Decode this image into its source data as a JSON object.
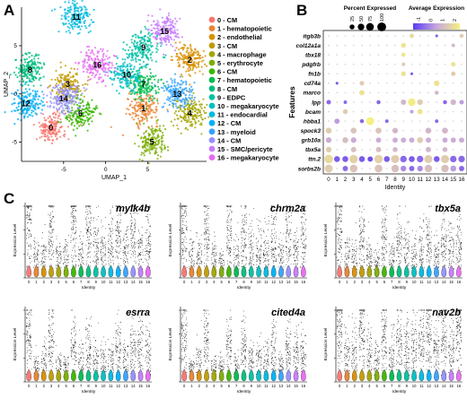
{
  "panels": {
    "a": "A",
    "b": "B",
    "c": "C"
  },
  "clusters": [
    {
      "id": 0,
      "label": "0 - CM",
      "color": "#F8766D"
    },
    {
      "id": 1,
      "label": "1 - hematopoietic",
      "color": "#EA8331"
    },
    {
      "id": 2,
      "label": "2 - endothelial",
      "color": "#D89000"
    },
    {
      "id": 3,
      "label": "3 - CM",
      "color": "#C09B00"
    },
    {
      "id": 4,
      "label": "4 - macrophage",
      "color": "#A3A500"
    },
    {
      "id": 5,
      "label": "5 - erythrocyte",
      "color": "#7CAE00"
    },
    {
      "id": 6,
      "label": "6 - CM",
      "color": "#39B600"
    },
    {
      "id": 7,
      "label": "7 - hematopoietic",
      "color": "#00BB4E"
    },
    {
      "id": 8,
      "label": "8 - CM",
      "color": "#00BF7D"
    },
    {
      "id": 9,
      "label": "9 - EDPC",
      "color": "#00C1A3"
    },
    {
      "id": 10,
      "label": "10 - megakaryocyte",
      "color": "#00BFC4"
    },
    {
      "id": 11,
      "label": "11 - endocardial",
      "color": "#00BAE0"
    },
    {
      "id": 12,
      "label": "12 - CM",
      "color": "#00B0F6"
    },
    {
      "id": 13,
      "label": "13 - myeloid",
      "color": "#35A2FF"
    },
    {
      "id": 14,
      "label": "14 - CM",
      "color": "#9590FF"
    },
    {
      "id": 15,
      "label": "15 - SMC/pericyte",
      "color": "#C77CFF"
    },
    {
      "id": 16,
      "label": "16 - megakaryocyte",
      "color": "#E76BF3"
    }
  ],
  "chart_data": [
    {
      "type": "scatter",
      "panel": "A",
      "xlabel": "UMAP_1",
      "ylabel": "UMAP_2",
      "xticks": [
        -5,
        0,
        5
      ],
      "yticks": [
        -5,
        0,
        5
      ],
      "xlim": [
        -10,
        12
      ],
      "ylim": [
        -7,
        9
      ],
      "cluster_centers": [
        {
          "cluster": 0,
          "x": -6.5,
          "y": -3.5
        },
        {
          "cluster": 1,
          "x": 4.5,
          "y": -1.5
        },
        {
          "cluster": 2,
          "x": 10.0,
          "y": 3.5
        },
        {
          "cluster": 3,
          "x": -4.5,
          "y": 1.0
        },
        {
          "cluster": 4,
          "x": 10.0,
          "y": -2.0
        },
        {
          "cluster": 5,
          "x": 5.5,
          "y": -5.0
        },
        {
          "cluster": 6,
          "x": -3.0,
          "y": -2.0
        },
        {
          "cluster": 7,
          "x": 4.5,
          "y": 1.0
        },
        {
          "cluster": 8,
          "x": -9.0,
          "y": 2.5
        },
        {
          "cluster": 9,
          "x": 4.5,
          "y": 4.8
        },
        {
          "cluster": 10,
          "x": 2.5,
          "y": 2.0
        },
        {
          "cluster": 11,
          "x": -3.5,
          "y": 8.0
        },
        {
          "cluster": 12,
          "x": -9.5,
          "y": -1.0
        },
        {
          "cluster": 13,
          "x": 8.5,
          "y": 0.0
        },
        {
          "cluster": 14,
          "x": -5.0,
          "y": -0.5
        },
        {
          "cluster": 15,
          "x": 7.0,
          "y": 6.5
        },
        {
          "cluster": 16,
          "x": -1.0,
          "y": 3.0
        }
      ]
    },
    {
      "type": "dot",
      "panel": "B",
      "xlabel": "Identity",
      "ylabel": "Features",
      "x": [
        "0",
        "1",
        "2",
        "3",
        "4",
        "5",
        "6",
        "7",
        "8",
        "9",
        "10",
        "11",
        "12",
        "13",
        "14",
        "15",
        "16"
      ],
      "features": [
        "itgb3b",
        "col12a1a",
        "tbx18",
        "pdgfrb",
        "fn1b",
        "cd74a",
        "marco",
        "lpp",
        "bcam",
        "hbba1",
        "spock3",
        "grb10a",
        "tbx5a",
        "ttn.2",
        "sorbs2b"
      ],
      "pct_legend": {
        "title": "Percent Expressed",
        "values": [
          25,
          50,
          75,
          100
        ]
      },
      "avg_legend": {
        "title": "Average Expression",
        "ticks": [
          "-1",
          "0",
          "1",
          "2"
        ],
        "colors": [
          "#5a3cf0",
          "#c8a6e0",
          "#f5f080"
        ]
      },
      "cells": [
        {
          "f": "itgb3b",
          "c": [
            {
              "i": 10,
              "p": 20,
              "e": 1.8
            },
            {
              "i": 16,
              "p": 15,
              "e": 1.5
            },
            {
              "i": 13,
              "p": 5,
              "e": -0.5
            }
          ]
        },
        {
          "f": "col12a1a",
          "c": [
            {
              "i": 9,
              "p": 25,
              "e": 2.0
            },
            {
              "i": 15,
              "p": 10,
              "e": 1.0
            }
          ]
        },
        {
          "f": "tbx18",
          "c": [
            {
              "i": 9,
              "p": 15,
              "e": 2.0
            }
          ]
        },
        {
          "f": "pdgfrb",
          "c": [
            {
              "i": 9,
              "p": 10,
              "e": 1.5
            },
            {
              "i": 15,
              "p": 20,
              "e": 2.0
            }
          ]
        },
        {
          "f": "fn1b",
          "c": [
            {
              "i": 9,
              "p": 25,
              "e": 2.0
            },
            {
              "i": 10,
              "p": 5,
              "e": -0.5
            },
            {
              "i": 15,
              "p": 20,
              "e": 1.5
            }
          ]
        },
        {
          "f": "cd74a",
          "c": [
            {
              "i": 4,
              "p": 20,
              "e": 1.5
            },
            {
              "i": 13,
              "p": 35,
              "e": 2.0
            },
            {
              "i": 1,
              "p": 5,
              "e": -0.5
            }
          ]
        },
        {
          "f": "marco",
          "c": [
            {
              "i": 4,
              "p": 30,
              "e": 2.0
            },
            {
              "i": 13,
              "p": 15,
              "e": 1.0
            }
          ]
        },
        {
          "f": "lpp",
          "c": [
            {
              "i": 10,
              "p": 70,
              "e": 2.2
            },
            {
              "i": 11,
              "p": 35,
              "e": 1.5
            },
            {
              "i": 9,
              "p": 30,
              "e": 1.0
            },
            {
              "i": 15,
              "p": 35,
              "e": 1.0
            },
            {
              "i": 16,
              "p": 20,
              "e": 0.5
            },
            {
              "i": 0,
              "p": 20,
              "e": -0.3
            },
            {
              "i": 2,
              "p": 10,
              "e": -0.3
            },
            {
              "i": 6,
              "p": 15,
              "e": -0.3
            },
            {
              "i": 14,
              "p": 15,
              "e": -0.3
            }
          ]
        },
        {
          "f": "bcam",
          "c": [
            {
              "i": 2,
              "p": 25,
              "e": 1.5
            },
            {
              "i": 11,
              "p": 30,
              "e": 2.0
            },
            {
              "i": 10,
              "p": 10,
              "e": 0.5
            }
          ]
        },
        {
          "f": "hbba1",
          "c": [
            {
              "i": 5,
              "p": 80,
              "e": 2.3
            },
            {
              "i": 1,
              "p": 30,
              "e": 0.5
            },
            {
              "i": 4,
              "p": 15,
              "e": -0.3
            },
            {
              "i": 7,
              "p": 10,
              "e": -0.3
            },
            {
              "i": 13,
              "p": 10,
              "e": -0.3
            }
          ]
        },
        {
          "f": "spock3",
          "c": [
            {
              "i": 0,
              "p": 40,
              "e": 1.5
            },
            {
              "i": 3,
              "p": 40,
              "e": 1.3
            },
            {
              "i": 6,
              "p": 40,
              "e": 1.3
            },
            {
              "i": 8,
              "p": 35,
              "e": 1.0
            },
            {
              "i": 12,
              "p": 40,
              "e": 1.0
            },
            {
              "i": 14,
              "p": 40,
              "e": 1.0
            }
          ]
        },
        {
          "f": "grb10a",
          "c": [
            {
              "i": 0,
              "p": 35,
              "e": 0.8
            },
            {
              "i": 2,
              "p": 40,
              "e": 1.2
            },
            {
              "i": 3,
              "p": 35,
              "e": 0.8
            },
            {
              "i": 6,
              "p": 30,
              "e": 0.8
            },
            {
              "i": 8,
              "p": 30,
              "e": 0.8
            },
            {
              "i": 9,
              "p": 30,
              "e": 0.8
            },
            {
              "i": 10,
              "p": 30,
              "e": 0.8
            },
            {
              "i": 11,
              "p": 40,
              "e": 1.5
            },
            {
              "i": 12,
              "p": 30,
              "e": 0.8
            },
            {
              "i": 14,
              "p": 30,
              "e": 0.8
            },
            {
              "i": 15,
              "p": 30,
              "e": 0.8
            },
            {
              "i": 16,
              "p": 30,
              "e": 0.8
            }
          ]
        },
        {
          "f": "tbx5a",
          "c": [
            {
              "i": 0,
              "p": 35,
              "e": 1.5
            },
            {
              "i": 3,
              "p": 30,
              "e": 1.2
            },
            {
              "i": 6,
              "p": 30,
              "e": 1.2
            },
            {
              "i": 8,
              "p": 25,
              "e": 1.0
            },
            {
              "i": 12,
              "p": 30,
              "e": 1.0
            },
            {
              "i": 14,
              "p": 25,
              "e": 1.0
            }
          ]
        },
        {
          "f": "ttn.2",
          "c": [
            {
              "i": 0,
              "p": 95,
              "e": 1.8
            },
            {
              "i": 3,
              "p": 90,
              "e": 1.6
            },
            {
              "i": 6,
              "p": 90,
              "e": 1.6
            },
            {
              "i": 8,
              "p": 85,
              "e": 1.5
            },
            {
              "i": 12,
              "p": 85,
              "e": 1.5
            },
            {
              "i": 14,
              "p": 85,
              "e": 1.5
            },
            {
              "i": 1,
              "p": 40,
              "e": -0.5
            },
            {
              "i": 2,
              "p": 40,
              "e": -0.5
            },
            {
              "i": 4,
              "p": 40,
              "e": -0.5
            },
            {
              "i": 5,
              "p": 30,
              "e": -0.7
            },
            {
              "i": 7,
              "p": 40,
              "e": -0.5
            },
            {
              "i": 9,
              "p": 50,
              "e": -0.3
            },
            {
              "i": 10,
              "p": 40,
              "e": -0.5
            },
            {
              "i": 11,
              "p": 50,
              "e": -0.3
            },
            {
              "i": 13,
              "p": 40,
              "e": -0.5
            },
            {
              "i": 15,
              "p": 50,
              "e": -0.3
            },
            {
              "i": 16,
              "p": 50,
              "e": -0.3
            }
          ]
        },
        {
          "f": "sorbs2b",
          "c": [
            {
              "i": 0,
              "p": 80,
              "e": 1.5
            },
            {
              "i": 3,
              "p": 75,
              "e": 1.3
            },
            {
              "i": 6,
              "p": 75,
              "e": 1.3
            },
            {
              "i": 8,
              "p": 70,
              "e": 1.2
            },
            {
              "i": 12,
              "p": 70,
              "e": 1.2
            },
            {
              "i": 14,
              "p": 70,
              "e": 1.2
            },
            {
              "i": 2,
              "p": 30,
              "e": -0.3
            },
            {
              "i": 9,
              "p": 35,
              "e": 0.2
            },
            {
              "i": 10,
              "p": 30,
              "e": -0.3
            },
            {
              "i": 11,
              "p": 35,
              "e": 0.2
            },
            {
              "i": 15,
              "p": 40,
              "e": 0.5
            },
            {
              "i": 16,
              "p": 30,
              "e": -0.3
            }
          ]
        }
      ]
    },
    {
      "type": "violin",
      "panel": "C",
      "xlabel": "Identity",
      "ylabel": "Expression Level",
      "categories": [
        "0",
        "1",
        "2",
        "3",
        "4",
        "5",
        "6",
        "7",
        "8",
        "9",
        "10",
        "11",
        "12",
        "13",
        "14",
        "15",
        "16"
      ],
      "genes": [
        {
          "name": "mylk4b",
          "ymax": 3,
          "levels": [
            0.9,
            0.3,
            0.3,
            0.8,
            0.3,
            0.3,
            0.8,
            0.3,
            0.7,
            0.5,
            0.4,
            0.5,
            0.7,
            0.4,
            0.7,
            0.4,
            0.6
          ]
        },
        {
          "name": "chrm2a",
          "ymax": 3,
          "levels": [
            0.8,
            0.3,
            0.3,
            0.7,
            0.3,
            0.2,
            0.7,
            0.3,
            0.6,
            0.4,
            0.4,
            0.4,
            0.6,
            0.3,
            0.6,
            0.4,
            0.6
          ]
        },
        {
          "name": "tbx5a",
          "ymax": 3,
          "levels": [
            0.8,
            0.3,
            0.3,
            0.6,
            0.3,
            0.2,
            0.6,
            0.3,
            0.5,
            0.4,
            0.3,
            0.4,
            0.5,
            0.3,
            0.5,
            0.4,
            0.5
          ]
        },
        {
          "name": "esrra",
          "ymax": 3,
          "levels": [
            0.7,
            0.2,
            0.3,
            0.6,
            0.2,
            0.2,
            0.5,
            0.3,
            0.5,
            0.3,
            0.3,
            0.3,
            0.5,
            0.3,
            0.5,
            0.5,
            0.4
          ]
        },
        {
          "name": "cited4a",
          "ymax": 3,
          "levels": [
            0.7,
            0.2,
            0.3,
            0.6,
            0.2,
            0.2,
            0.5,
            0.2,
            0.5,
            0.3,
            0.3,
            0.3,
            0.5,
            0.2,
            0.5,
            0.4,
            0.4
          ]
        },
        {
          "name": "nav2b",
          "ymax": 3,
          "levels": [
            0.9,
            0.4,
            0.4,
            0.8,
            0.4,
            0.3,
            0.7,
            0.4,
            0.6,
            0.5,
            0.5,
            0.6,
            0.8,
            0.5,
            0.7,
            0.5,
            0.9
          ]
        }
      ]
    }
  ]
}
